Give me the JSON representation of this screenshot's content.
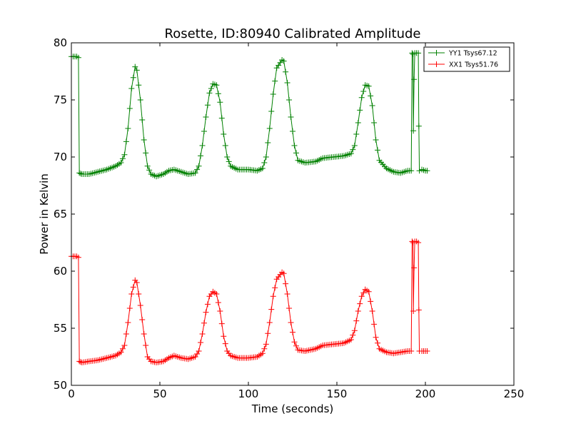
{
  "chart_data": {
    "type": "line",
    "title": "Rosette, ID:80940 Calibrated Amplitude",
    "xlabel": "Time (seconds)",
    "ylabel": "Power in Kelvin",
    "xlim": [
      0,
      250
    ],
    "ylim": [
      50,
      80
    ],
    "xticks": [
      0,
      50,
      100,
      150,
      200,
      250
    ],
    "xtick_labels": [
      "0",
      "50",
      "100",
      "150",
      "200",
      "250"
    ],
    "yticks": [
      50,
      55,
      60,
      65,
      70,
      75,
      80
    ],
    "ytick_labels": [
      "50",
      "55",
      "60",
      "65",
      "70",
      "75",
      "80"
    ],
    "grid": false,
    "legend_position": "top-right",
    "marker": "plus",
    "series": [
      {
        "name": "YY1 Tsys67.12",
        "color": "#008000",
        "points": [
          [
            0,
            78.8
          ],
          [
            3,
            78.8
          ],
          [
            4,
            78.7
          ],
          [
            4.5,
            68.6
          ],
          [
            6,
            68.5
          ],
          [
            10,
            68.5
          ],
          [
            15,
            68.7
          ],
          [
            20,
            68.9
          ],
          [
            25,
            69.2
          ],
          [
            28,
            69.5
          ],
          [
            30,
            70.2
          ],
          [
            32,
            72.5
          ],
          [
            34,
            76.0
          ],
          [
            36,
            77.9
          ],
          [
            37,
            77.6
          ],
          [
            39,
            75.0
          ],
          [
            41,
            71.5
          ],
          [
            43,
            69.2
          ],
          [
            45,
            68.5
          ],
          [
            48,
            68.3
          ],
          [
            52,
            68.5
          ],
          [
            55,
            68.8
          ],
          [
            58,
            68.9
          ],
          [
            62,
            68.7
          ],
          [
            66,
            68.5
          ],
          [
            70,
            68.6
          ],
          [
            72,
            69.2
          ],
          [
            74,
            71.0
          ],
          [
            76,
            73.5
          ],
          [
            78,
            75.6
          ],
          [
            80,
            76.4
          ],
          [
            82,
            76.3
          ],
          [
            84,
            74.8
          ],
          [
            86,
            72.0
          ],
          [
            88,
            70.0
          ],
          [
            90,
            69.2
          ],
          [
            94,
            68.9
          ],
          [
            100,
            68.9
          ],
          [
            105,
            68.8
          ],
          [
            108,
            69.0
          ],
          [
            110,
            70.0
          ],
          [
            112,
            72.5
          ],
          [
            114,
            75.5
          ],
          [
            116,
            77.8
          ],
          [
            119,
            78.5
          ],
          [
            120,
            78.4
          ],
          [
            122,
            76.5
          ],
          [
            124,
            73.5
          ],
          [
            126,
            71.0
          ],
          [
            128,
            69.7
          ],
          [
            132,
            69.5
          ],
          [
            138,
            69.6
          ],
          [
            142,
            69.9
          ],
          [
            148,
            70.0
          ],
          [
            154,
            70.1
          ],
          [
            158,
            70.3
          ],
          [
            160,
            71.0
          ],
          [
            162,
            73.0
          ],
          [
            164,
            75.2
          ],
          [
            166,
            76.3
          ],
          [
            168,
            76.2
          ],
          [
            170,
            74.5
          ],
          [
            172,
            71.5
          ],
          [
            174,
            69.7
          ],
          [
            178,
            69.0
          ],
          [
            182,
            68.7
          ],
          [
            186,
            68.6
          ],
          [
            190,
            68.8
          ],
          [
            192,
            68.8
          ],
          [
            192.5,
            79.1
          ],
          [
            193,
            79.0
          ],
          [
            193.2,
            72.3
          ],
          [
            193.6,
            76.8
          ],
          [
            194,
            79.1
          ],
          [
            195,
            79.1
          ],
          [
            196,
            79.1
          ],
          [
            196.3,
            72.7
          ],
          [
            196.6,
            68.8
          ],
          [
            198,
            68.9
          ],
          [
            200,
            68.8
          ],
          [
            201,
            68.8
          ]
        ]
      },
      {
        "name": "XX1 Tsys51.76",
        "color": "#ff0000",
        "points": [
          [
            0,
            61.3
          ],
          [
            3,
            61.3
          ],
          [
            4,
            61.2
          ],
          [
            4.5,
            52.1
          ],
          [
            6,
            52.0
          ],
          [
            10,
            52.1
          ],
          [
            15,
            52.2
          ],
          [
            20,
            52.4
          ],
          [
            25,
            52.6
          ],
          [
            28,
            52.9
          ],
          [
            30,
            53.5
          ],
          [
            32,
            55.5
          ],
          [
            34,
            58.0
          ],
          [
            36,
            59.2
          ],
          [
            37,
            59.0
          ],
          [
            39,
            57.0
          ],
          [
            41,
            54.5
          ],
          [
            43,
            52.5
          ],
          [
            45,
            52.1
          ],
          [
            48,
            52.0
          ],
          [
            52,
            52.1
          ],
          [
            55,
            52.4
          ],
          [
            58,
            52.6
          ],
          [
            62,
            52.4
          ],
          [
            66,
            52.3
          ],
          [
            70,
            52.5
          ],
          [
            72,
            53.0
          ],
          [
            74,
            54.5
          ],
          [
            76,
            56.4
          ],
          [
            78,
            57.8
          ],
          [
            80,
            58.2
          ],
          [
            82,
            58.0
          ],
          [
            84,
            56.5
          ],
          [
            86,
            54.3
          ],
          [
            88,
            53.0
          ],
          [
            90,
            52.6
          ],
          [
            94,
            52.4
          ],
          [
            100,
            52.4
          ],
          [
            105,
            52.5
          ],
          [
            108,
            52.8
          ],
          [
            110,
            53.6
          ],
          [
            112,
            55.5
          ],
          [
            114,
            57.8
          ],
          [
            116,
            59.3
          ],
          [
            119,
            59.9
          ],
          [
            120,
            59.8
          ],
          [
            122,
            58.0
          ],
          [
            124,
            55.5
          ],
          [
            126,
            53.8
          ],
          [
            128,
            53.1
          ],
          [
            132,
            53.0
          ],
          [
            138,
            53.2
          ],
          [
            142,
            53.5
          ],
          [
            148,
            53.6
          ],
          [
            154,
            53.7
          ],
          [
            158,
            54.0
          ],
          [
            160,
            54.8
          ],
          [
            162,
            56.5
          ],
          [
            164,
            57.8
          ],
          [
            166,
            58.4
          ],
          [
            168,
            58.2
          ],
          [
            170,
            56.5
          ],
          [
            172,
            54.2
          ],
          [
            174,
            53.2
          ],
          [
            178,
            52.9
          ],
          [
            182,
            52.8
          ],
          [
            186,
            52.9
          ],
          [
            190,
            53.0
          ],
          [
            192,
            53.0
          ],
          [
            192.5,
            62.6
          ],
          [
            193,
            62.5
          ],
          [
            193.2,
            56.5
          ],
          [
            193.6,
            60.3
          ],
          [
            194,
            62.6
          ],
          [
            195,
            62.6
          ],
          [
            196,
            62.5
          ],
          [
            196.3,
            56.6
          ],
          [
            196.6,
            53.0
          ],
          [
            198,
            53.0
          ],
          [
            200,
            53.0
          ],
          [
            201,
            53.0
          ]
        ]
      }
    ]
  }
}
